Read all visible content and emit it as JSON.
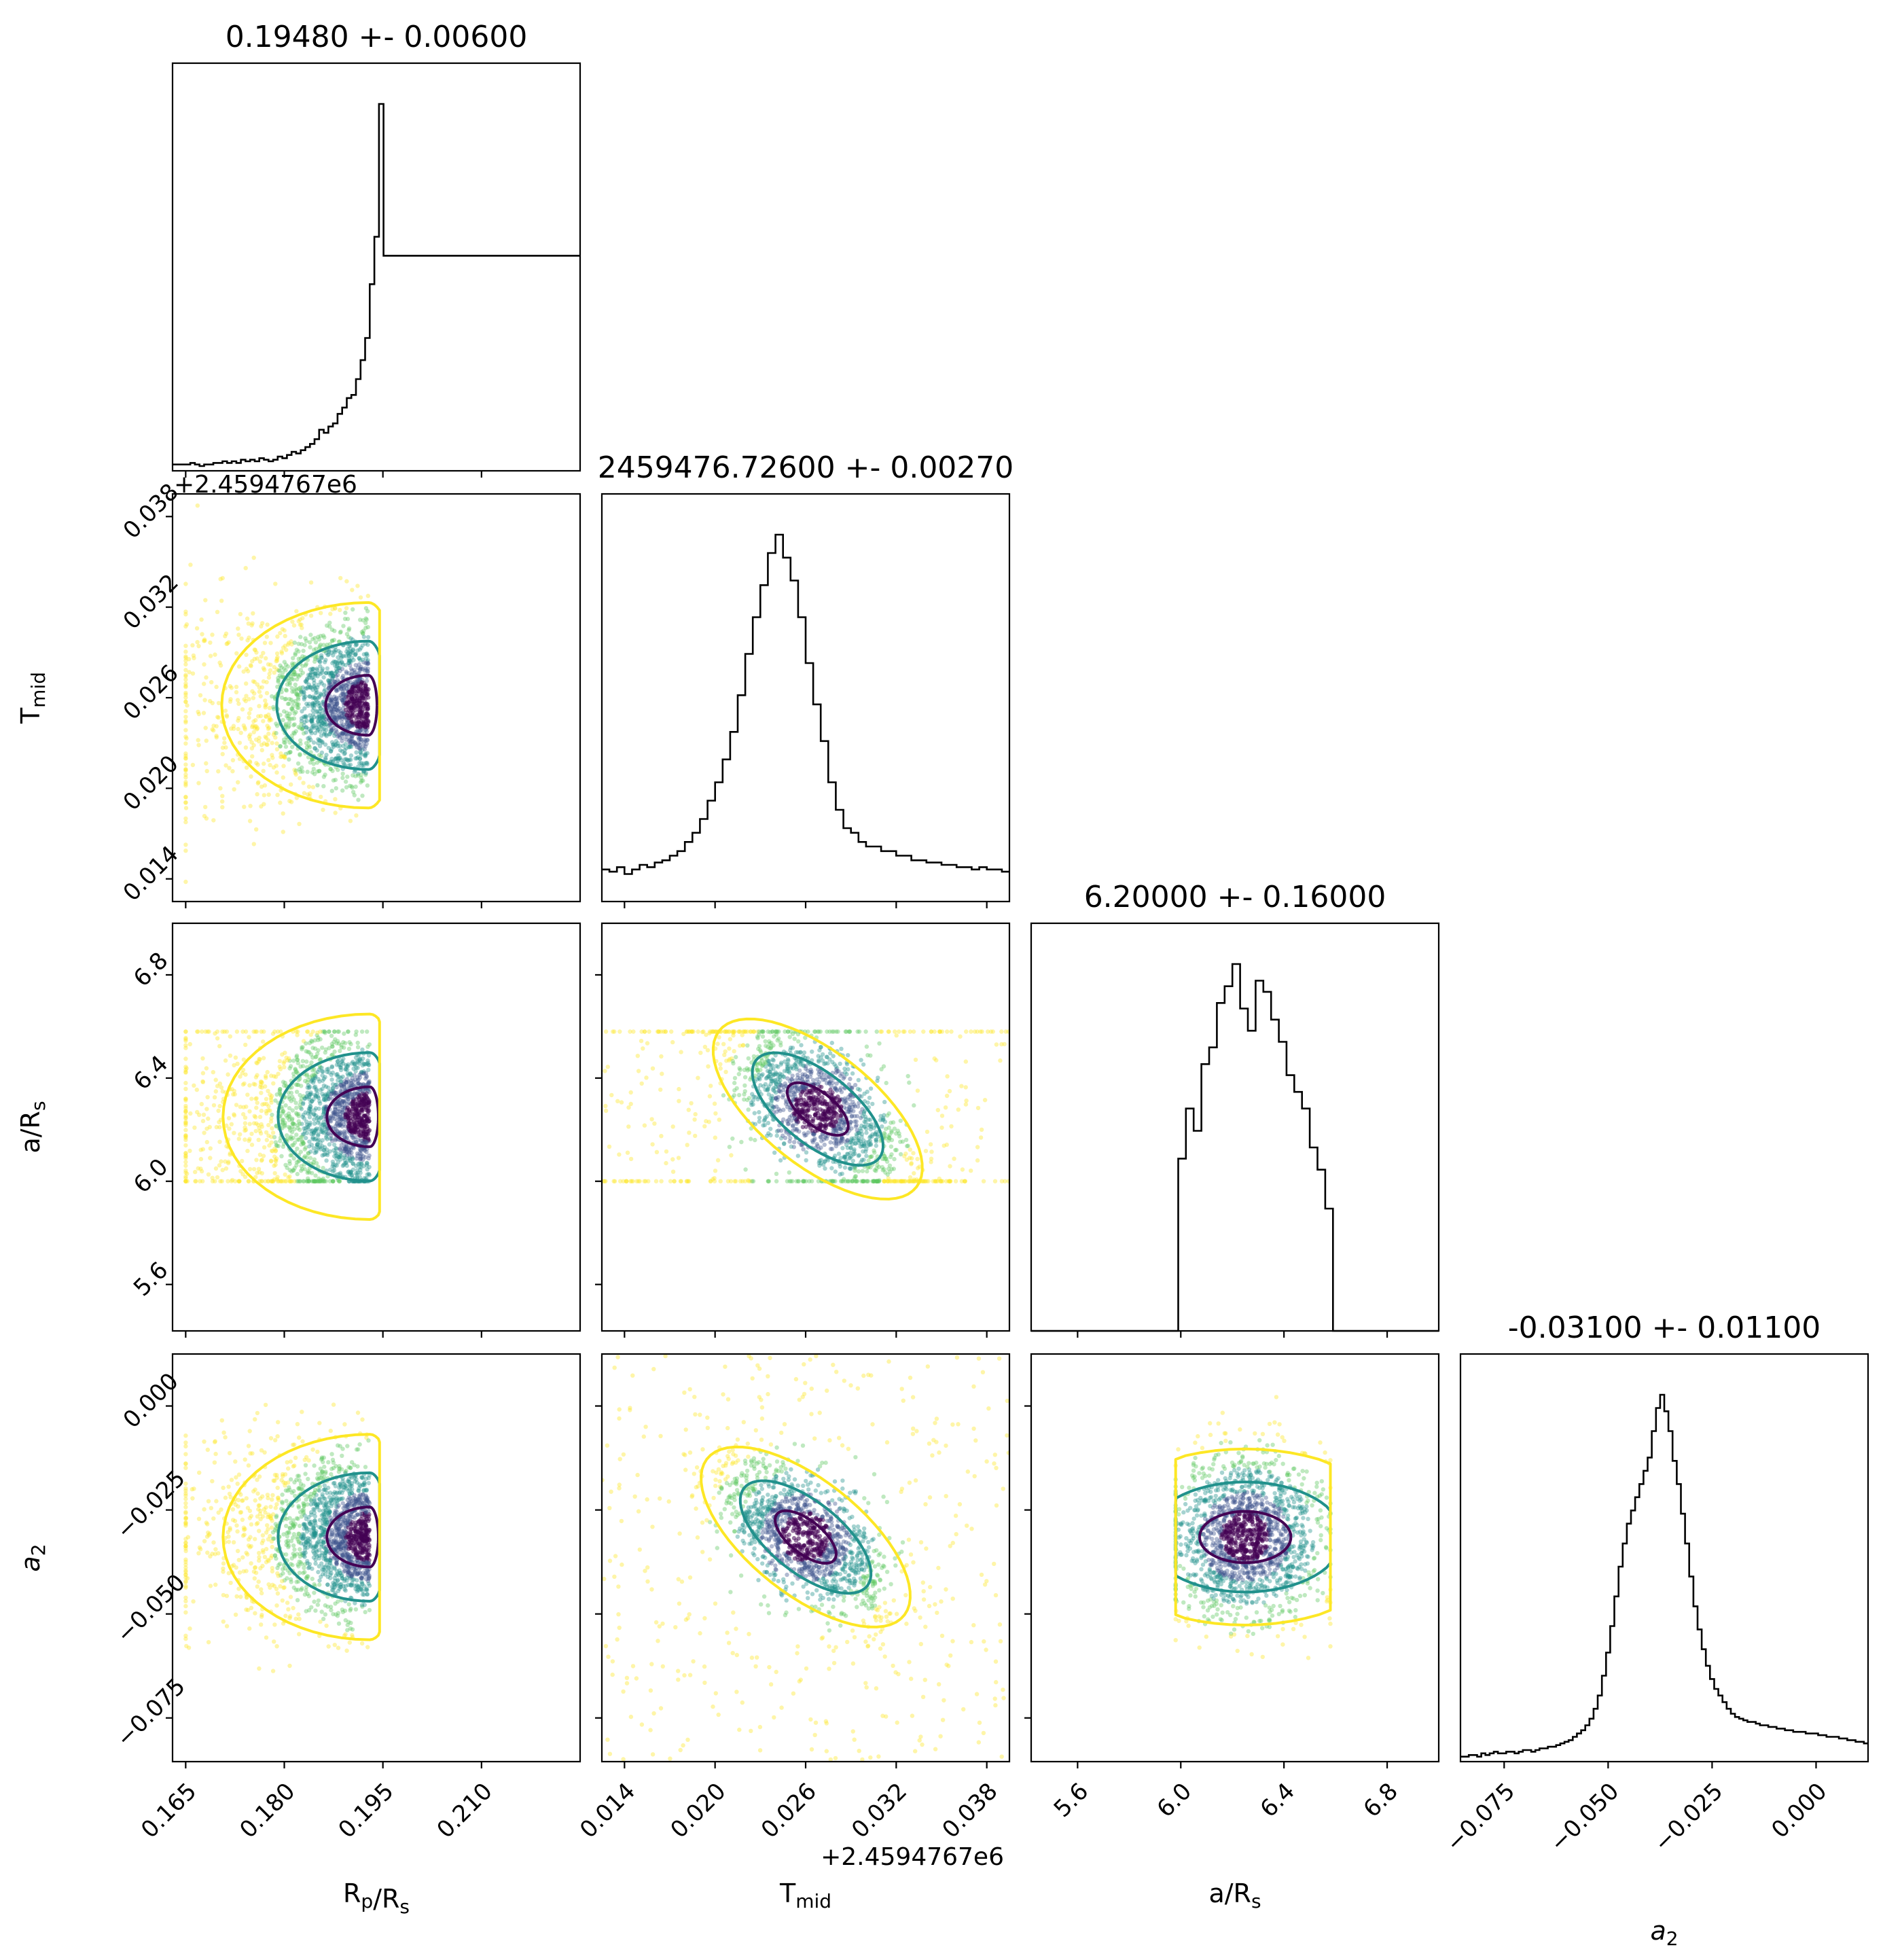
{
  "chart_data": {
    "type": "scatter",
    "variant": "corner-plot",
    "parameters": [
      {
        "id": "rp",
        "axis_label": "R_p/R_s",
        "title": "0.19480 +- 0.00600",
        "range": [
          0.163,
          0.225
        ],
        "ticks": [
          0.165,
          0.18,
          0.195,
          0.21
        ],
        "tick_labels": [
          "0.165",
          "0.180",
          "0.195",
          "0.210"
        ],
        "offset_label": ""
      },
      {
        "id": "tmid",
        "axis_label": "T_mid",
        "title": "2459476.72600 +- 0.00270",
        "range": [
          0.0125,
          0.0395
        ],
        "ticks": [
          0.014,
          0.02,
          0.026,
          0.032,
          0.038
        ],
        "tick_labels": [
          "0.014",
          "0.020",
          "0.026",
          "0.032",
          "0.038"
        ],
        "offset_label": "+2.4594767e6"
      },
      {
        "id": "ars",
        "axis_label": "a/R_s",
        "title": "6.20000 +- 0.16000",
        "range": [
          5.42,
          7.0
        ],
        "ticks": [
          5.6,
          6.0,
          6.4,
          6.8
        ],
        "tick_labels": [
          "5.6",
          "6.0",
          "6.4",
          "6.8"
        ],
        "offset_label": ""
      },
      {
        "id": "a2",
        "axis_label": "a_2",
        "title": "-0.03100 +- 0.01100",
        "range": [
          -0.0855,
          0.0125
        ],
        "ticks": [
          -0.075,
          -0.05,
          -0.025,
          0.0
        ],
        "tick_labels": [
          "−0.075",
          "−0.050",
          "−0.025",
          "0.000"
        ],
        "offset_label": ""
      }
    ],
    "labels_display": [
      {
        "main": "R",
        "sub": "p",
        "tail": "/R",
        "tailsub": "s"
      },
      {
        "main": "T",
        "sub": "mid",
        "tail": "",
        "tailsub": ""
      },
      {
        "main": "a/R",
        "sub": "s",
        "tail": "",
        "tailsub": ""
      },
      {
        "main": "a",
        "sub": "2",
        "tail": "",
        "tailsub": "",
        "italic": true
      }
    ],
    "histograms": {
      "rp": {
        "bins": [
          0.165,
          0.1657,
          0.1664,
          0.1671,
          0.1678,
          0.1685,
          0.1692,
          0.1699,
          0.1706,
          0.1713,
          0.172,
          0.1727,
          0.1734,
          0.1741,
          0.1748,
          0.1755,
          0.1762,
          0.1769,
          0.1776,
          0.1783,
          0.179,
          0.1797,
          0.1804,
          0.1811,
          0.1818,
          0.1825,
          0.1832,
          0.1839,
          0.1846,
          0.1853,
          0.186,
          0.1867,
          0.1874,
          0.1881,
          0.1888,
          0.1895,
          0.1902,
          0.1909,
          0.1916,
          0.1923,
          0.193,
          0.1937,
          0.1944,
          0.1951
        ],
        "counts": [
          4,
          5,
          4,
          3,
          4,
          4,
          5,
          5,
          6,
          5,
          6,
          5,
          7,
          6,
          7,
          6,
          8,
          7,
          6,
          7,
          9,
          8,
          10,
          12,
          11,
          13,
          15,
          17,
          20,
          26,
          24,
          28,
          30,
          36,
          40,
          46,
          48,
          58,
          70,
          84,
          118,
          148,
          232,
          136
        ]
      },
      "tmid": {
        "bins": [
          0.0125,
          0.013,
          0.0135,
          0.014,
          0.0145,
          0.015,
          0.0155,
          0.016,
          0.0165,
          0.017,
          0.0175,
          0.018,
          0.0185,
          0.019,
          0.0195,
          0.02,
          0.0205,
          0.021,
          0.0215,
          0.022,
          0.0225,
          0.023,
          0.0235,
          0.024,
          0.0245,
          0.025,
          0.0255,
          0.026,
          0.0265,
          0.027,
          0.0275,
          0.028,
          0.0285,
          0.029,
          0.0295,
          0.03,
          0.0305,
          0.031,
          0.0315,
          0.032,
          0.0325,
          0.033,
          0.0335,
          0.034,
          0.0345,
          0.035,
          0.0355,
          0.036,
          0.0365,
          0.037,
          0.0375,
          0.038,
          0.0385,
          0.039
        ],
        "counts": [
          14,
          13,
          15,
          12,
          14,
          16,
          15,
          17,
          18,
          20,
          22,
          26,
          30,
          36,
          44,
          52,
          62,
          74,
          90,
          108,
          124,
          138,
          152,
          160,
          150,
          140,
          124,
          104,
          86,
          70,
          52,
          40,
          32,
          30,
          26,
          24,
          24,
          22,
          22,
          20,
          20,
          18,
          18,
          17,
          17,
          16,
          16,
          15,
          15,
          14,
          15,
          14,
          14,
          13
        ]
      },
      "ars": {
        "bins": [
          5.42,
          5.48,
          5.54,
          5.6,
          5.66,
          5.72,
          5.78,
          5.84,
          5.9,
          5.96,
          5.99,
          6.02,
          6.05,
          6.08,
          6.11,
          6.14,
          6.17,
          6.2,
          6.23,
          6.26,
          6.29,
          6.32,
          6.35,
          6.38,
          6.41,
          6.44,
          6.47,
          6.5,
          6.53,
          6.56,
          6.59,
          6.65,
          6.71,
          6.77,
          6.83,
          6.89,
          6.95
        ],
        "counts": [
          0,
          0,
          0,
          0,
          0,
          0,
          0,
          0,
          0,
          0,
          62,
          80,
          72,
          96,
          102,
          118,
          124,
          132,
          116,
          108,
          126,
          122,
          112,
          104,
          92,
          86,
          80,
          66,
          58,
          44,
          0,
          0,
          0,
          0,
          0,
          0,
          0
        ]
      },
      "a2": {
        "bins": [
          -0.0855,
          -0.0845,
          -0.0835,
          -0.0825,
          -0.0815,
          -0.0805,
          -0.0795,
          -0.0785,
          -0.0775,
          -0.0765,
          -0.0755,
          -0.0745,
          -0.0735,
          -0.0725,
          -0.0715,
          -0.0705,
          -0.0695,
          -0.0685,
          -0.0675,
          -0.0665,
          -0.0655,
          -0.0645,
          -0.0635,
          -0.0625,
          -0.0615,
          -0.0605,
          -0.0595,
          -0.0585,
          -0.0575,
          -0.0565,
          -0.0555,
          -0.0545,
          -0.0535,
          -0.0525,
          -0.0515,
          -0.0505,
          -0.0495,
          -0.0485,
          -0.0475,
          -0.0465,
          -0.0455,
          -0.0445,
          -0.0435,
          -0.0425,
          -0.0415,
          -0.0405,
          -0.0395,
          -0.0385,
          -0.0375,
          -0.0365,
          -0.0355,
          -0.0345,
          -0.0335,
          -0.0325,
          -0.0315,
          -0.0305,
          -0.0295,
          -0.0285,
          -0.0275,
          -0.0265,
          -0.0255,
          -0.0245,
          -0.0235,
          -0.0225,
          -0.0215,
          -0.0205,
          -0.0195,
          -0.0185,
          -0.0175,
          -0.0165,
          -0.0155,
          -0.0145,
          -0.0135,
          -0.0125,
          -0.0115,
          -0.0105,
          -0.0095,
          -0.0085,
          -0.0075,
          -0.0065,
          -0.0055,
          -0.0045,
          -0.0035,
          -0.0025,
          -0.0015,
          -0.0005,
          0.0005,
          0.0015,
          0.0025,
          0.0035,
          0.0045,
          0.0055,
          0.0065,
          0.0075,
          0.0085,
          0.0095,
          0.0105,
          0.0115
        ],
        "counts": [
          3,
          3,
          4,
          4,
          3,
          5,
          4,
          5,
          6,
          5,
          5,
          6,
          6,
          5,
          6,
          7,
          7,
          6,
          7,
          8,
          8,
          9,
          9,
          10,
          11,
          12,
          13,
          15,
          17,
          19,
          22,
          26,
          32,
          40,
          52,
          66,
          82,
          100,
          118,
          132,
          144,
          152,
          160,
          168,
          176,
          184,
          200,
          214,
          222,
          212,
          200,
          182,
          168,
          150,
          132,
          112,
          94,
          80,
          68,
          58,
          50,
          44,
          40,
          36,
          32,
          29,
          27,
          26,
          25,
          24,
          24,
          23,
          22,
          22,
          21,
          21,
          20,
          20,
          19,
          19,
          18,
          18,
          18,
          17,
          17,
          17,
          16,
          16,
          15,
          15,
          15,
          14,
          14,
          13,
          13,
          12,
          12,
          11
        ]
      }
    },
    "pairs": [
      {
        "x": "rp",
        "y": "tmid",
        "mode": [
          0.1928,
          0.0255
        ],
        "shape": "skewed-right",
        "x_clip": [
          0.165,
          0.1945
        ],
        "y_clip": [
          0.0132,
          0.0392
        ]
      },
      {
        "x": "rp",
        "y": "ars",
        "mode": [
          0.193,
          6.25
        ],
        "shape": "skewed-right",
        "x_clip": [
          0.165,
          0.1945
        ],
        "y_clip": [
          6.0,
          6.58
        ]
      },
      {
        "x": "tmid",
        "y": "ars",
        "mode": [
          0.0268,
          6.28
        ],
        "shape": "tilted-negative",
        "x_clip": [
          0.0125,
          0.0395
        ],
        "y_clip": [
          6.0,
          6.58
        ]
      },
      {
        "x": "rp",
        "y": "a2",
        "mode": [
          0.193,
          -0.0315
        ],
        "shape": "skewed-right",
        "x_clip": [
          0.165,
          0.1945
        ],
        "y_clip": [
          -0.085,
          0.012
        ]
      },
      {
        "x": "tmid",
        "y": "a2",
        "mode": [
          0.026,
          -0.0315
        ],
        "shape": "tilted-negative",
        "x_clip": [
          0.0125,
          0.0395
        ],
        "y_clip": [
          -0.085,
          0.012
        ]
      },
      {
        "x": "ars",
        "y": "a2",
        "mode": [
          6.25,
          -0.0315
        ],
        "shape": "flat",
        "x_clip": [
          5.98,
          6.58
        ],
        "y_clip": [
          -0.085,
          0.012
        ]
      }
    ],
    "contour_colors": [
      "#440154",
      "#21918c",
      "#fde725"
    ],
    "point_colors": [
      "#440154",
      "#3b528b",
      "#21918c",
      "#5ec962",
      "#fde725"
    ],
    "hist_color": "#000000",
    "grid": false
  }
}
